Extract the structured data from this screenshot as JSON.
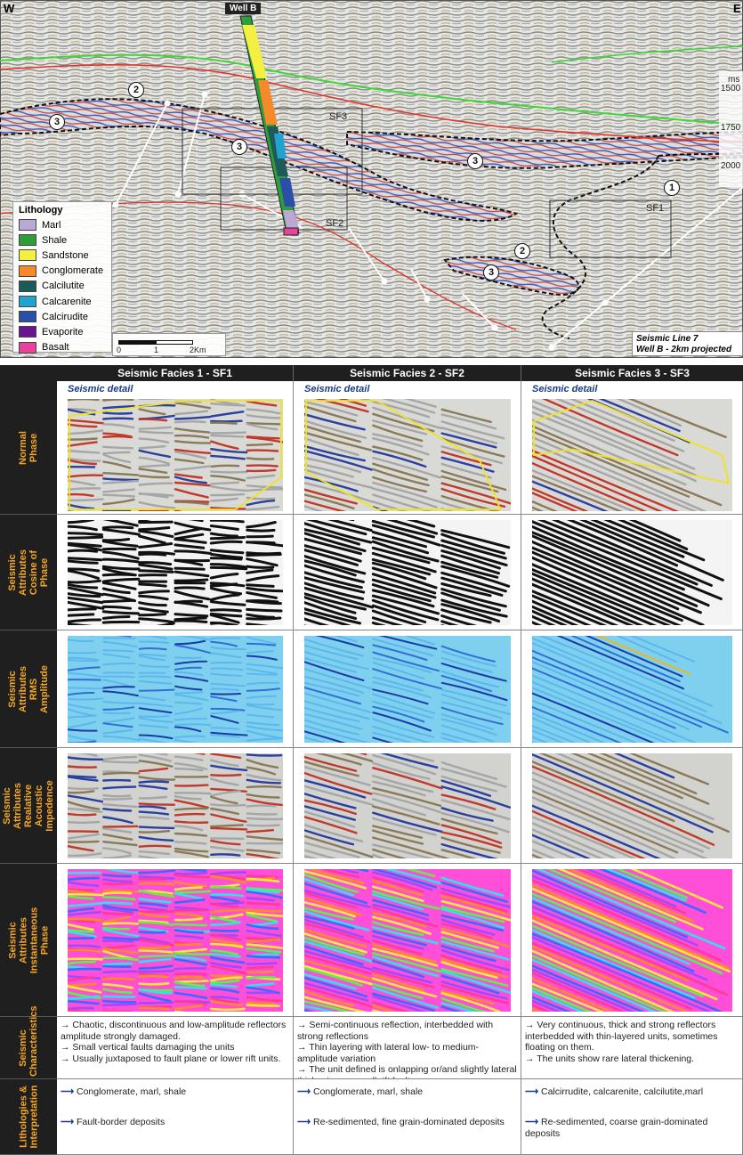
{
  "section": {
    "west": "W",
    "east": "E",
    "well_label": "Well B",
    "unit_ms": "ms",
    "time_ticks": [
      "1500",
      "1750",
      "2000"
    ],
    "facies_circles": [
      "1",
      "2",
      "3"
    ],
    "box_labels": [
      "SF1",
      "SF2",
      "SF3"
    ],
    "scale_ticks": [
      "0",
      "1",
      "2Km"
    ],
    "line_title": "Seismic Line 7",
    "line_subtitle": "Well B  - 2km projected"
  },
  "legend": {
    "title": "Lithology",
    "items": [
      {
        "label": "Marl",
        "color": "#b9a9d4"
      },
      {
        "label": "Shale",
        "color": "#2e9e3a"
      },
      {
        "label": "Sandstone",
        "color": "#f4f042"
      },
      {
        "label": "Conglomerate",
        "color": "#f58a2b"
      },
      {
        "label": "Calcilutite",
        "color": "#1e5a5a"
      },
      {
        "label": "Calcarenite",
        "color": "#21a3d0"
      },
      {
        "label": "Calcirudite",
        "color": "#2a4fa8"
      },
      {
        "label": "Evaporite",
        "color": "#6a138f"
      },
      {
        "label": "Basalt",
        "color": "#e6449a"
      }
    ]
  },
  "table": {
    "columns": [
      "Seismic Facies 1 - SF1",
      "Seismic Facies 2 - SF2",
      "Seismic Facies 3 - SF3"
    ],
    "seismic_detail": "Seismic detail",
    "rows": [
      "Normal Phase",
      "Seismic Attributes Cosine of Phase",
      "Seismic Attributes RMS Amplitude",
      "Seismic Attributes Realative Acoustic Impedence",
      "Seismic Attributes Instantaneous Phase",
      "Seismic Characteristics",
      "Lithologies & Interpretation"
    ],
    "characteristics": [
      "→ Chaotic, discontinuous and low-amplitude reflectors amplitude strongly damaged.\n→ Small vertical faults damaging the units\n→ Usually juxtaposed to fault plane or lower rift units.",
      "→ Semi-continuous reflection, interbedded with strong reflections\n→ Thin layering with lateral low- to medium- amplitude variation\n→ The unit defined is onlapping or/and slightly lateral thickening on small rift faults.",
      "→ Very continuous, thick and strong reflectors interbedded with thin-layered units, sometimes floating on them.\n→ The units show rare lateral thickening."
    ],
    "lithologies": [
      "Conglomerate, marl, shale",
      "Conglomerate, marl, shale",
      "Calcirrudite, calcarenite, calcilutite,marl"
    ],
    "interpretation": [
      "Fault-border deposits",
      "Re-sedimented, fine grain-dominated deposits",
      "Re-sedimented, coarse grain-dominated deposits"
    ]
  },
  "colors": {
    "header_bg": "#1f1f1f",
    "row_label_text": "#f5a623",
    "outline_yellow": "#f2e31b",
    "horizon_green": "#3fd63a",
    "horizon_red": "#e0332b"
  }
}
